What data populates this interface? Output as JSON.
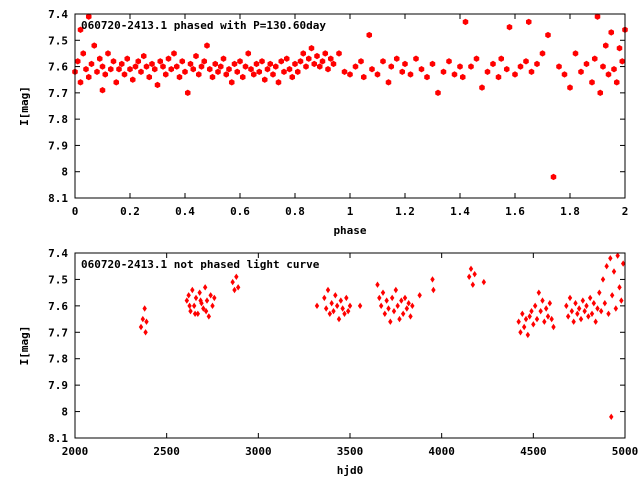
{
  "colors": {
    "points": "#ff0000",
    "axes": "#000000",
    "background": "#ffffff"
  },
  "chart_data": [
    {
      "type": "scatter",
      "title": "060720-2413.1 phased with P=130.60day",
      "xlabel": "phase",
      "ylabel": "I[mag]",
      "xlim": [
        0,
        2
      ],
      "ylim": [
        7.4,
        8.1
      ],
      "y_inverted": true,
      "grid": false,
      "marker": "filled-hexagon",
      "x_ticks": [
        "0",
        "0.2",
        "0.4",
        "0.6",
        "0.8",
        "1",
        "1.2",
        "1.4",
        "1.6",
        "1.8",
        "2"
      ],
      "y_ticks": [
        "7.4",
        "7.5",
        "7.6",
        "7.7",
        "7.8",
        "7.9",
        "8",
        "8.1"
      ],
      "points": [
        [
          0.0,
          7.62
        ],
        [
          0.01,
          7.58
        ],
        [
          0.02,
          7.46
        ],
        [
          0.02,
          7.66
        ],
        [
          0.03,
          7.55
        ],
        [
          0.04,
          7.61
        ],
        [
          0.05,
          7.41
        ],
        [
          0.05,
          7.64
        ],
        [
          0.06,
          7.59
        ],
        [
          0.07,
          7.52
        ],
        [
          0.08,
          7.62
        ],
        [
          0.09,
          7.57
        ],
        [
          0.1,
          7.6
        ],
        [
          0.1,
          7.69
        ],
        [
          0.11,
          7.63
        ],
        [
          0.12,
          7.55
        ],
        [
          0.13,
          7.61
        ],
        [
          0.14,
          7.58
        ],
        [
          0.15,
          7.66
        ],
        [
          0.16,
          7.61
        ],
        [
          0.17,
          7.59
        ],
        [
          0.18,
          7.63
        ],
        [
          0.19,
          7.57
        ],
        [
          0.2,
          7.61
        ],
        [
          0.21,
          7.65
        ],
        [
          0.22,
          7.6
        ],
        [
          0.23,
          7.58
        ],
        [
          0.24,
          7.62
        ],
        [
          0.25,
          7.56
        ],
        [
          0.26,
          7.6
        ],
        [
          0.27,
          7.64
        ],
        [
          0.28,
          7.59
        ],
        [
          0.29,
          7.61
        ],
        [
          0.3,
          7.67
        ],
        [
          0.31,
          7.58
        ],
        [
          0.32,
          7.6
        ],
        [
          0.33,
          7.63
        ],
        [
          0.34,
          7.57
        ],
        [
          0.35,
          7.61
        ],
        [
          0.36,
          7.55
        ],
        [
          0.37,
          7.6
        ],
        [
          0.38,
          7.64
        ],
        [
          0.39,
          7.58
        ],
        [
          0.4,
          7.62
        ],
        [
          0.41,
          7.7
        ],
        [
          0.42,
          7.59
        ],
        [
          0.43,
          7.61
        ],
        [
          0.44,
          7.56
        ],
        [
          0.45,
          7.63
        ],
        [
          0.46,
          7.6
        ],
        [
          0.47,
          7.58
        ],
        [
          0.48,
          7.52
        ],
        [
          0.49,
          7.61
        ],
        [
          0.5,
          7.64
        ],
        [
          0.51,
          7.59
        ],
        [
          0.52,
          7.62
        ],
        [
          0.53,
          7.6
        ],
        [
          0.54,
          7.57
        ],
        [
          0.55,
          7.63
        ],
        [
          0.56,
          7.61
        ],
        [
          0.57,
          7.66
        ],
        [
          0.58,
          7.59
        ],
        [
          0.59,
          7.62
        ],
        [
          0.6,
          7.58
        ],
        [
          0.61,
          7.64
        ],
        [
          0.62,
          7.6
        ],
        [
          0.63,
          7.55
        ],
        [
          0.64,
          7.61
        ],
        [
          0.65,
          7.63
        ],
        [
          0.66,
          7.59
        ],
        [
          0.67,
          7.62
        ],
        [
          0.68,
          7.58
        ],
        [
          0.69,
          7.65
        ],
        [
          0.7,
          7.61
        ],
        [
          0.71,
          7.59
        ],
        [
          0.72,
          7.63
        ],
        [
          0.73,
          7.6
        ],
        [
          0.74,
          7.66
        ],
        [
          0.75,
          7.58
        ],
        [
          0.76,
          7.62
        ],
        [
          0.77,
          7.57
        ],
        [
          0.78,
          7.61
        ],
        [
          0.79,
          7.64
        ],
        [
          0.8,
          7.59
        ],
        [
          0.81,
          7.62
        ],
        [
          0.82,
          7.58
        ],
        [
          0.83,
          7.55
        ],
        [
          0.84,
          7.6
        ],
        [
          0.85,
          7.57
        ],
        [
          0.86,
          7.53
        ],
        [
          0.87,
          7.59
        ],
        [
          0.88,
          7.56
        ],
        [
          0.89,
          7.6
        ],
        [
          0.9,
          7.58
        ],
        [
          0.91,
          7.55
        ],
        [
          0.92,
          7.61
        ],
        [
          0.93,
          7.57
        ],
        [
          0.94,
          7.59
        ],
        [
          0.96,
          7.55
        ],
        [
          0.98,
          7.62
        ],
        [
          1.0,
          7.63
        ],
        [
          1.02,
          7.6
        ],
        [
          1.04,
          7.58
        ],
        [
          1.05,
          7.64
        ],
        [
          1.07,
          7.48
        ],
        [
          1.08,
          7.61
        ],
        [
          1.1,
          7.63
        ],
        [
          1.12,
          7.58
        ],
        [
          1.14,
          7.66
        ],
        [
          1.15,
          7.6
        ],
        [
          1.17,
          7.57
        ],
        [
          1.19,
          7.62
        ],
        [
          1.2,
          7.59
        ],
        [
          1.22,
          7.63
        ],
        [
          1.24,
          7.57
        ],
        [
          1.26,
          7.61
        ],
        [
          1.28,
          7.64
        ],
        [
          1.3,
          7.59
        ],
        [
          1.32,
          7.7
        ],
        [
          1.34,
          7.62
        ],
        [
          1.36,
          7.58
        ],
        [
          1.38,
          7.63
        ],
        [
          1.4,
          7.6
        ],
        [
          1.41,
          7.64
        ],
        [
          1.42,
          7.43
        ],
        [
          1.44,
          7.6
        ],
        [
          1.46,
          7.57
        ],
        [
          1.48,
          7.68
        ],
        [
          1.5,
          7.62
        ],
        [
          1.52,
          7.59
        ],
        [
          1.54,
          7.64
        ],
        [
          1.55,
          7.57
        ],
        [
          1.57,
          7.61
        ],
        [
          1.58,
          7.45
        ],
        [
          1.6,
          7.63
        ],
        [
          1.62,
          7.6
        ],
        [
          1.64,
          7.58
        ],
        [
          1.65,
          7.43
        ],
        [
          1.66,
          7.62
        ],
        [
          1.68,
          7.59
        ],
        [
          1.7,
          7.55
        ],
        [
          1.72,
          7.48
        ],
        [
          1.74,
          8.02
        ],
        [
          1.76,
          7.6
        ],
        [
          1.78,
          7.63
        ],
        [
          1.8,
          7.68
        ],
        [
          1.82,
          7.55
        ],
        [
          1.84,
          7.62
        ],
        [
          1.86,
          7.59
        ],
        [
          1.88,
          7.66
        ],
        [
          1.89,
          7.57
        ],
        [
          1.9,
          7.41
        ],
        [
          1.91,
          7.7
        ],
        [
          1.92,
          7.6
        ],
        [
          1.93,
          7.52
        ],
        [
          1.94,
          7.63
        ],
        [
          1.95,
          7.47
        ],
        [
          1.96,
          7.61
        ],
        [
          1.97,
          7.66
        ],
        [
          1.98,
          7.53
        ],
        [
          1.99,
          7.58
        ],
        [
          2.0,
          7.46
        ]
      ]
    },
    {
      "type": "scatter",
      "title": "060720-2413.1 not phased light curve",
      "xlabel": "hjd0",
      "ylabel": "I[mag]",
      "xlim": [
        2000,
        5000
      ],
      "ylim": [
        7.4,
        8.1
      ],
      "y_inverted": true,
      "grid": false,
      "marker": "filled-diamond",
      "x_ticks": [
        "2000",
        "2500",
        "3000",
        "3500",
        "4000",
        "4500",
        "5000"
      ],
      "y_ticks": [
        "7.4",
        "7.5",
        "7.6",
        "7.7",
        "7.8",
        "7.9",
        "8",
        "8.1"
      ],
      "points": [
        [
          2360,
          7.68
        ],
        [
          2370,
          7.65
        ],
        [
          2380,
          7.61
        ],
        [
          2385,
          7.7
        ],
        [
          2390,
          7.66
        ],
        [
          2610,
          7.58
        ],
        [
          2620,
          7.56
        ],
        [
          2630,
          7.62
        ],
        [
          2640,
          7.54
        ],
        [
          2650,
          7.6
        ],
        [
          2660,
          7.57
        ],
        [
          2670,
          7.63
        ],
        [
          2680,
          7.55
        ],
        [
          2690,
          7.59
        ],
        [
          2700,
          7.61
        ],
        [
          2710,
          7.53
        ],
        [
          2720,
          7.58
        ],
        [
          2730,
          7.64
        ],
        [
          2740,
          7.56
        ],
        [
          2750,
          7.6
        ],
        [
          2760,
          7.57
        ],
        [
          2625,
          7.6
        ],
        [
          2655,
          7.63
        ],
        [
          2685,
          7.58
        ],
        [
          2715,
          7.62
        ],
        [
          2860,
          7.51
        ],
        [
          2870,
          7.54
        ],
        [
          2880,
          7.49
        ],
        [
          2890,
          7.53
        ],
        [
          3320,
          7.6
        ],
        [
          3360,
          7.57
        ],
        [
          3370,
          7.61
        ],
        [
          3380,
          7.54
        ],
        [
          3390,
          7.63
        ],
        [
          3400,
          7.59
        ],
        [
          3410,
          7.62
        ],
        [
          3420,
          7.56
        ],
        [
          3430,
          7.6
        ],
        [
          3440,
          7.65
        ],
        [
          3450,
          7.58
        ],
        [
          3460,
          7.61
        ],
        [
          3470,
          7.63
        ],
        [
          3480,
          7.57
        ],
        [
          3490,
          7.62
        ],
        [
          3500,
          7.6
        ],
        [
          3555,
          7.6
        ],
        [
          3650,
          7.52
        ],
        [
          3660,
          7.57
        ],
        [
          3670,
          7.6
        ],
        [
          3680,
          7.55
        ],
        [
          3690,
          7.63
        ],
        [
          3700,
          7.58
        ],
        [
          3710,
          7.61
        ],
        [
          3720,
          7.66
        ],
        [
          3730,
          7.57
        ],
        [
          3740,
          7.62
        ],
        [
          3750,
          7.54
        ],
        [
          3760,
          7.6
        ],
        [
          3770,
          7.65
        ],
        [
          3780,
          7.58
        ],
        [
          3790,
          7.63
        ],
        [
          3800,
          7.57
        ],
        [
          3810,
          7.61
        ],
        [
          3820,
          7.59
        ],
        [
          3830,
          7.64
        ],
        [
          3840,
          7.6
        ],
        [
          3880,
          7.56
        ],
        [
          3950,
          7.5
        ],
        [
          3955,
          7.54
        ],
        [
          4150,
          7.49
        ],
        [
          4160,
          7.46
        ],
        [
          4170,
          7.52
        ],
        [
          4180,
          7.48
        ],
        [
          4230,
          7.51
        ],
        [
          4420,
          7.66
        ],
        [
          4430,
          7.7
        ],
        [
          4440,
          7.63
        ],
        [
          4450,
          7.68
        ],
        [
          4460,
          7.65
        ],
        [
          4470,
          7.71
        ],
        [
          4480,
          7.64
        ],
        [
          4490,
          7.62
        ],
        [
          4500,
          7.67
        ],
        [
          4510,
          7.6
        ],
        [
          4520,
          7.65
        ],
        [
          4530,
          7.55
        ],
        [
          4540,
          7.62
        ],
        [
          4550,
          7.58
        ],
        [
          4560,
          7.66
        ],
        [
          4570,
          7.61
        ],
        [
          4580,
          7.64
        ],
        [
          4590,
          7.59
        ],
        [
          4600,
          7.65
        ],
        [
          4610,
          7.68
        ],
        [
          4680,
          7.6
        ],
        [
          4690,
          7.64
        ],
        [
          4700,
          7.57
        ],
        [
          4710,
          7.62
        ],
        [
          4720,
          7.66
        ],
        [
          4730,
          7.59
        ],
        [
          4740,
          7.63
        ],
        [
          4750,
          7.61
        ],
        [
          4760,
          7.65
        ],
        [
          4770,
          7.58
        ],
        [
          4780,
          7.62
        ],
        [
          4790,
          7.6
        ],
        [
          4800,
          7.64
        ],
        [
          4810,
          7.57
        ],
        [
          4820,
          7.63
        ],
        [
          4830,
          7.59
        ],
        [
          4840,
          7.66
        ],
        [
          4850,
          7.61
        ],
        [
          4860,
          7.55
        ],
        [
          4870,
          7.62
        ],
        [
          4880,
          7.5
        ],
        [
          4890,
          7.59
        ],
        [
          4900,
          7.45
        ],
        [
          4910,
          7.63
        ],
        [
          4920,
          7.42
        ],
        [
          4925,
          8.02
        ],
        [
          4930,
          7.56
        ],
        [
          4940,
          7.47
        ],
        [
          4950,
          7.61
        ],
        [
          4960,
          7.41
        ],
        [
          4970,
          7.53
        ],
        [
          4980,
          7.58
        ],
        [
          4990,
          7.44
        ]
      ]
    }
  ]
}
